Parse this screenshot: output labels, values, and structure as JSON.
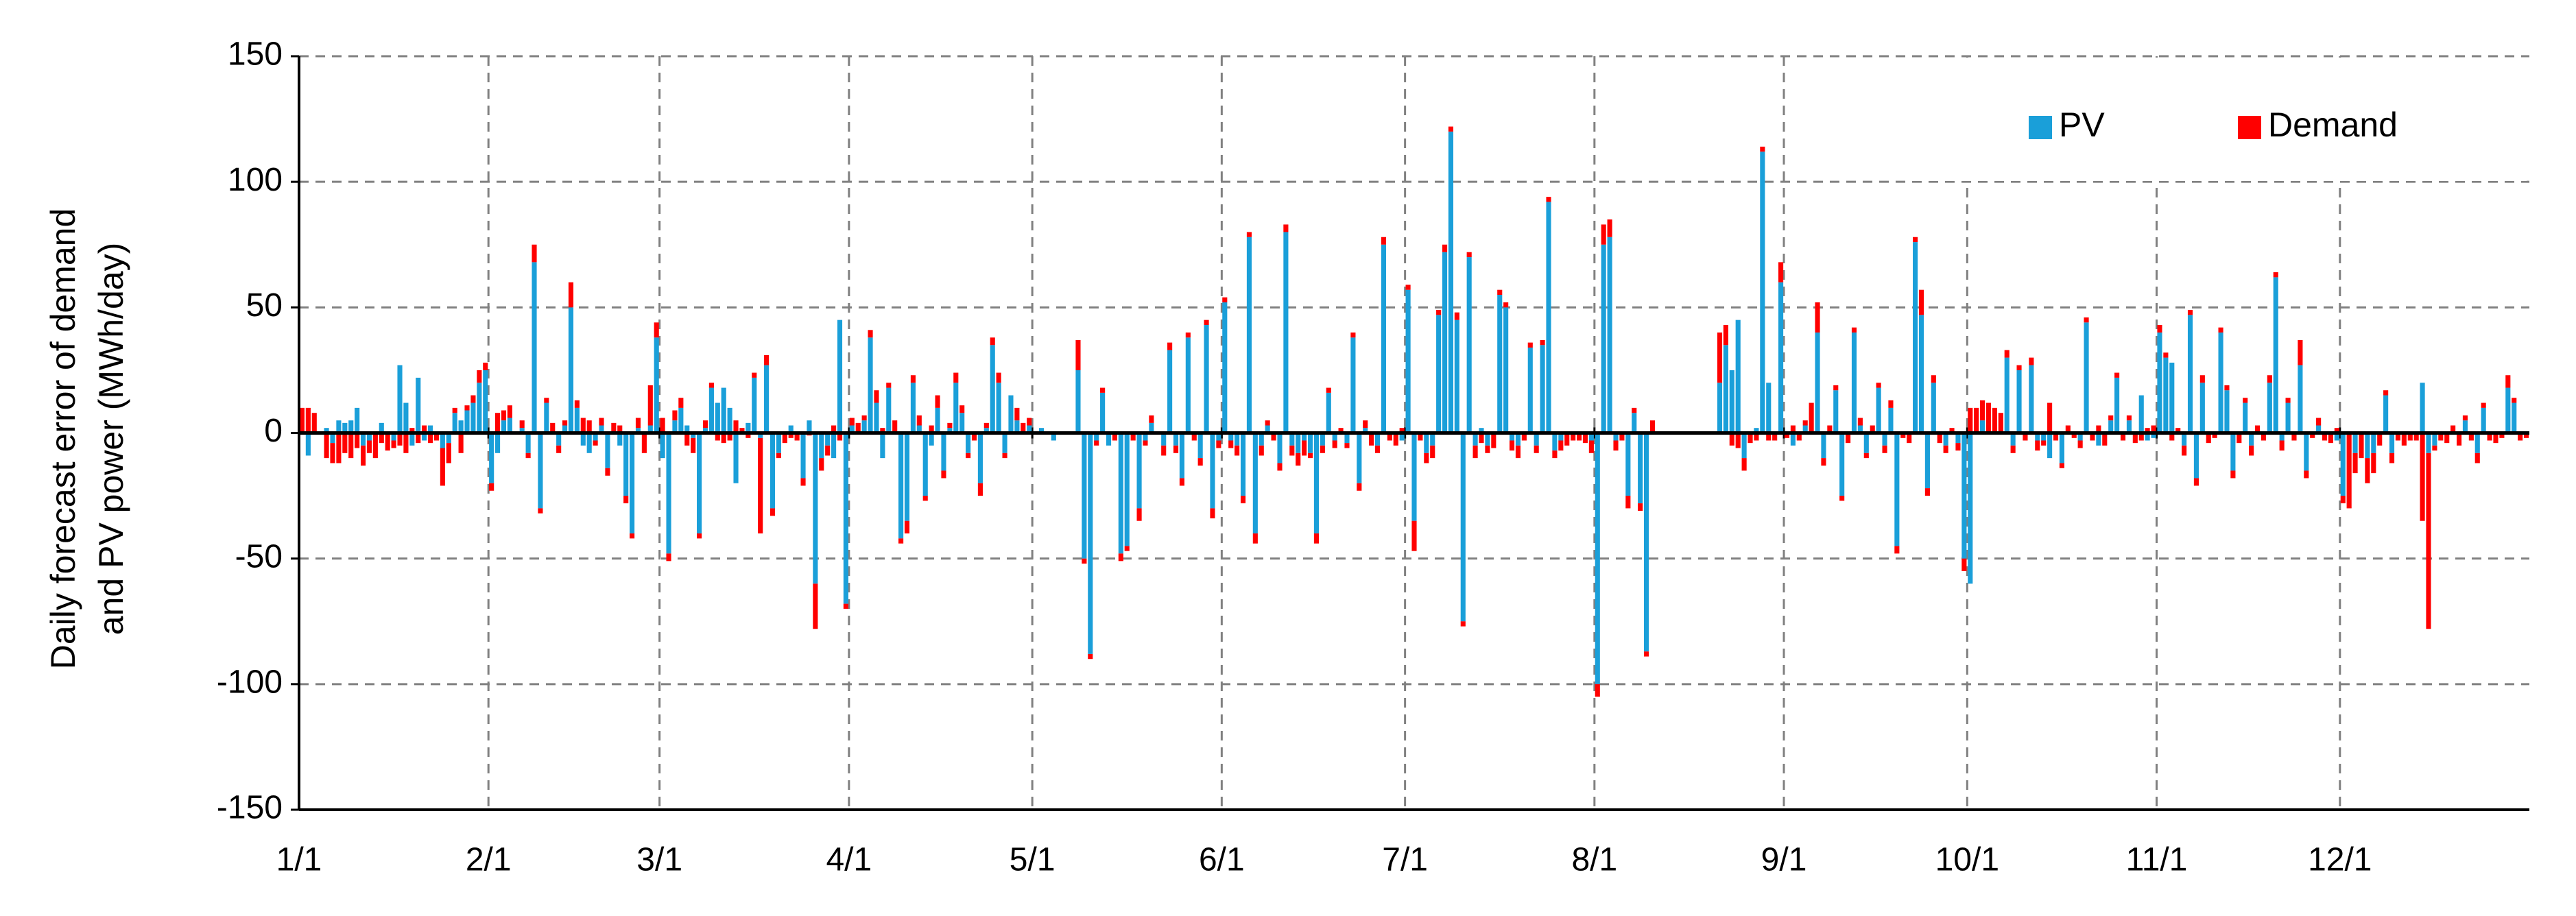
{
  "chart_data": {
    "type": "stacked_bar",
    "ylabel": [
      "Daily forecast error of demand",
      "and PV power (MWh/day)"
    ],
    "ylim": [
      -150,
      150
    ],
    "yticks": [
      -150,
      -100,
      -50,
      0,
      50,
      100,
      150
    ],
    "grid": true,
    "legend": "upper right",
    "categories": [
      "1/1",
      null,
      null,
      null,
      null,
      null,
      null,
      null,
      null,
      null,
      null,
      null,
      null,
      null,
      null,
      null,
      null,
      null,
      null,
      null,
      null,
      null,
      null,
      null,
      null,
      null,
      null,
      null,
      null,
      null,
      null,
      "2/1",
      null,
      null,
      null,
      null,
      null,
      null,
      null,
      null,
      null,
      null,
      null,
      null,
      null,
      null,
      null,
      null,
      null,
      null,
      null,
      null,
      null,
      null,
      null,
      null,
      null,
      null,
      null,
      "3/1",
      null,
      null,
      null,
      null,
      null,
      null,
      null,
      null,
      null,
      null,
      null,
      null,
      null,
      null,
      null,
      null,
      null,
      null,
      null,
      null,
      null,
      null,
      null,
      null,
      null,
      null,
      null,
      null,
      null,
      null,
      "4/1",
      null,
      null,
      null,
      null,
      null,
      null,
      null,
      null,
      null,
      null,
      null,
      null,
      null,
      null,
      null,
      null,
      null,
      null,
      null,
      null,
      null,
      null,
      null,
      null,
      null,
      null,
      null,
      null,
      null,
      "5/1",
      null,
      null,
      null,
      null,
      null,
      null,
      null,
      null,
      null,
      null,
      null,
      null,
      null,
      null,
      null,
      null,
      null,
      null,
      null,
      null,
      null,
      null,
      null,
      null,
      null,
      null,
      null,
      null,
      null,
      null,
      "6/1",
      null,
      null,
      null,
      null,
      null,
      null,
      null,
      null,
      null,
      null,
      null,
      null,
      null,
      null,
      null,
      null,
      null,
      null,
      null,
      null,
      null,
      null,
      null,
      null,
      null,
      null,
      null,
      null,
      null,
      "7/1",
      null,
      null,
      null,
      null,
      null,
      null,
      null,
      null,
      null,
      null,
      null,
      null,
      null,
      null,
      null,
      null,
      null,
      null,
      null,
      null,
      null,
      null,
      null,
      null,
      null,
      null,
      null,
      null,
      null,
      null,
      "8/1",
      null,
      null,
      null,
      null,
      null,
      null,
      null,
      null,
      null,
      null,
      null,
      null,
      null,
      null,
      null,
      null,
      null,
      null,
      null,
      null,
      null,
      null,
      null,
      null,
      null,
      null,
      null,
      null,
      null,
      null,
      "9/1",
      null,
      null,
      null,
      null,
      null,
      null,
      null,
      null,
      null,
      null,
      null,
      null,
      null,
      null,
      null,
      null,
      null,
      null,
      null,
      null,
      null,
      null,
      null,
      null,
      null,
      null,
      null,
      null,
      null,
      "10/1",
      null,
      null,
      null,
      null,
      null,
      null,
      null,
      null,
      null,
      null,
      null,
      null,
      null,
      null,
      null,
      null,
      null,
      null,
      null,
      null,
      null,
      null,
      null,
      null,
      null,
      null,
      null,
      null,
      null,
      null,
      "11/1",
      null,
      null,
      null,
      null,
      null,
      null,
      null,
      null,
      null,
      null,
      null,
      null,
      null,
      null,
      null,
      null,
      null,
      null,
      null,
      null,
      null,
      null,
      null,
      null,
      null,
      null,
      null,
      null,
      null,
      "12/1",
      null,
      null,
      null,
      null,
      null,
      null,
      null,
      null,
      null,
      null,
      null,
      null,
      null,
      null,
      null,
      null,
      null,
      null,
      null,
      null,
      null,
      null,
      null,
      null,
      null,
      null,
      null,
      null,
      null,
      null
    ],
    "series": [
      {
        "name": "PV",
        "color": "#1a9fd9",
        "values": [
          0,
          -9,
          0,
          0,
          2,
          -4,
          5,
          4,
          5,
          10,
          -5,
          -3,
          0,
          4,
          0,
          -3,
          27,
          12,
          -5,
          22,
          -3,
          3,
          0,
          -6,
          -4,
          8,
          5,
          9,
          12,
          20,
          25,
          -20,
          -8,
          5,
          6,
          0,
          2,
          -8,
          68,
          -30,
          12,
          0,
          -5,
          3,
          50,
          10,
          -5,
          -8,
          -3,
          3,
          -14,
          0,
          -5,
          -25,
          -40,
          2,
          0,
          3,
          38,
          -10,
          -48,
          5,
          10,
          3,
          -2,
          -40,
          2,
          18,
          12,
          18,
          10,
          -20,
          0,
          4,
          22,
          -2,
          27,
          -30,
          -8,
          0,
          3,
          0,
          -18,
          5,
          -60,
          -10,
          -5,
          -10,
          45,
          -68,
          3,
          0,
          5,
          38,
          12,
          -10,
          18,
          0,
          -42,
          -35,
          20,
          3,
          -25,
          -5,
          10,
          -15,
          2,
          20,
          8,
          -8,
          0,
          -20,
          2,
          35,
          20,
          -8,
          15,
          5,
          0,
          3,
          0,
          2,
          0,
          -3,
          0,
          0,
          0,
          25,
          -50,
          -88,
          -3,
          16,
          -5,
          0,
          -48,
          -45,
          0,
          -30,
          -3,
          4,
          0,
          -5,
          33,
          -5,
          -18,
          38,
          0,
          -10,
          43,
          -30,
          -3,
          52,
          -3,
          -5,
          -25,
          78,
          -40,
          -5,
          3,
          0,
          -12,
          80,
          -5,
          -8,
          -3,
          -8,
          -40,
          -5,
          16,
          -3,
          0,
          -4,
          38,
          -20,
          2,
          0,
          -5,
          75,
          0,
          0,
          -3,
          57,
          -35,
          0,
          -8,
          -5,
          47,
          72,
          120,
          45,
          -75,
          70,
          -5,
          2,
          -5,
          0,
          55,
          50,
          -3,
          -5,
          0,
          34,
          -5,
          35,
          92,
          -7,
          -3,
          0,
          0,
          0,
          0,
          -3,
          -100,
          75,
          78,
          -3,
          0,
          -25,
          8,
          -28,
          -87,
          0,
          0,
          0,
          0,
          0,
          0,
          0,
          0,
          0,
          0,
          0,
          20,
          35,
          25,
          45,
          -10,
          0,
          2,
          112,
          20,
          0,
          60,
          0,
          -5,
          0,
          3,
          0,
          40,
          -10,
          0,
          17,
          -25,
          0,
          40,
          3,
          -8,
          0,
          18,
          -5,
          10,
          -45,
          0,
          0,
          76,
          47,
          -22,
          20,
          0,
          -5,
          0,
          -4,
          -50,
          -60,
          0,
          5,
          0,
          0,
          0,
          30,
          -5,
          25,
          0,
          27,
          -3,
          -3,
          -10,
          0,
          -12,
          0,
          0,
          -3,
          44,
          0,
          -5,
          0,
          5,
          22,
          0,
          5,
          0,
          15,
          -3,
          -2,
          40,
          30,
          28,
          0,
          -5,
          47,
          -18,
          20,
          0,
          0,
          40,
          17,
          -15,
          0,
          12,
          -5,
          0,
          0,
          20,
          62,
          -3,
          12,
          0,
          27,
          -15,
          0,
          3,
          0,
          0,
          -3,
          -25,
          0,
          -8,
          0,
          -10,
          -8,
          0,
          15,
          -8,
          0,
          0,
          0,
          0,
          20,
          -8,
          -5,
          0,
          0,
          0,
          0,
          5,
          0,
          -8,
          10,
          0,
          0,
          0,
          18,
          12,
          0,
          0
        ]
      },
      {
        "name": "Demand",
        "color": "#ff0000",
        "values": [
          10,
          10,
          8,
          0,
          -10,
          -8,
          -12,
          -8,
          -10,
          -6,
          -8,
          -5,
          -10,
          -4,
          -7,
          -3,
          -5,
          -8,
          2,
          -4,
          3,
          -4,
          -3,
          -15,
          -8,
          2,
          -8,
          2,
          3,
          5,
          3,
          -3,
          8,
          4,
          5,
          0,
          3,
          -2,
          7,
          -2,
          2,
          4,
          -3,
          2,
          10,
          3,
          6,
          5,
          -2,
          3,
          -3,
          4,
          3,
          -3,
          -2,
          4,
          -8,
          16,
          6,
          6,
          -3,
          4,
          4,
          -5,
          -6,
          -2,
          3,
          2,
          -3,
          -4,
          -3,
          5,
          2,
          -2,
          2,
          -38,
          4,
          -3,
          -2,
          -4,
          -2,
          -3,
          -3,
          -1,
          -18,
          -5,
          -4,
          3,
          -3,
          -2,
          3,
          4,
          2,
          3,
          5,
          2,
          2,
          5,
          -2,
          -5,
          3,
          4,
          -2,
          3,
          5,
          -3,
          2,
          4,
          3,
          -2,
          -3,
          -5,
          2,
          3,
          4,
          -2,
          0,
          5,
          4,
          3,
          0,
          0,
          0,
          0,
          0,
          0,
          0,
          12,
          -2,
          -2,
          -2,
          2,
          0,
          -3,
          -3,
          -2,
          -3,
          -5,
          -2,
          3,
          0,
          -4,
          3,
          -3,
          -3,
          2,
          -3,
          -3,
          2,
          -4,
          -3,
          2,
          -3,
          -4,
          -3,
          2,
          -4,
          -4,
          2,
          -3,
          -3,
          3,
          -4,
          -5,
          -6,
          -2,
          -4,
          -3,
          2,
          -3,
          2,
          -2,
          2,
          -3,
          3,
          -5,
          -3,
          3,
          -3,
          -5,
          2,
          2,
          -12,
          -3,
          -4,
          -5,
          2,
          3,
          2,
          3,
          -2,
          2,
          -5,
          -4,
          -3,
          -6,
          2,
          2,
          -4,
          -5,
          -3,
          2,
          -3,
          2,
          2,
          -3,
          -4,
          -5,
          -3,
          -3,
          -4,
          -5,
          -5,
          8,
          7,
          -4,
          -3,
          -5,
          2,
          -3,
          -2,
          5,
          0,
          0,
          0,
          0,
          0,
          0,
          0,
          0,
          0,
          0,
          20,
          8,
          -5,
          -6,
          -5,
          -4,
          -3,
          2,
          -3,
          -3,
          8,
          -2,
          3,
          -3,
          2,
          12,
          12,
          -3,
          3,
          2,
          -2,
          -4,
          2,
          3,
          -2,
          3,
          2,
          -3,
          3,
          -3,
          -2,
          -4,
          2,
          10,
          -3,
          3,
          -4,
          -3,
          2,
          -3,
          -5,
          10,
          10,
          8,
          12,
          10,
          8,
          3,
          -3,
          2,
          -3,
          3,
          -4,
          -2,
          12,
          -3,
          -2,
          3,
          -2,
          -3,
          2,
          -3,
          3,
          -5,
          2,
          2,
          -3,
          2,
          -4,
          -3,
          2,
          3,
          3,
          2,
          -3,
          2,
          -4,
          2,
          -3,
          3,
          -4,
          -2,
          2,
          2,
          -3,
          -4,
          2,
          -4,
          3,
          -3,
          3,
          2,
          -4,
          2,
          -3,
          10,
          -3,
          -2,
          3,
          -3,
          -4,
          2,
          -3,
          -30,
          -8,
          -10,
          -10,
          -8,
          -5,
          2,
          -4,
          -3,
          -5,
          -3,
          -3,
          -35,
          -70,
          -2,
          -3,
          -4,
          3,
          -5,
          2,
          -3,
          -4,
          2,
          -3,
          -4,
          -2,
          5,
          2,
          -3,
          -2
        ]
      }
    ]
  }
}
